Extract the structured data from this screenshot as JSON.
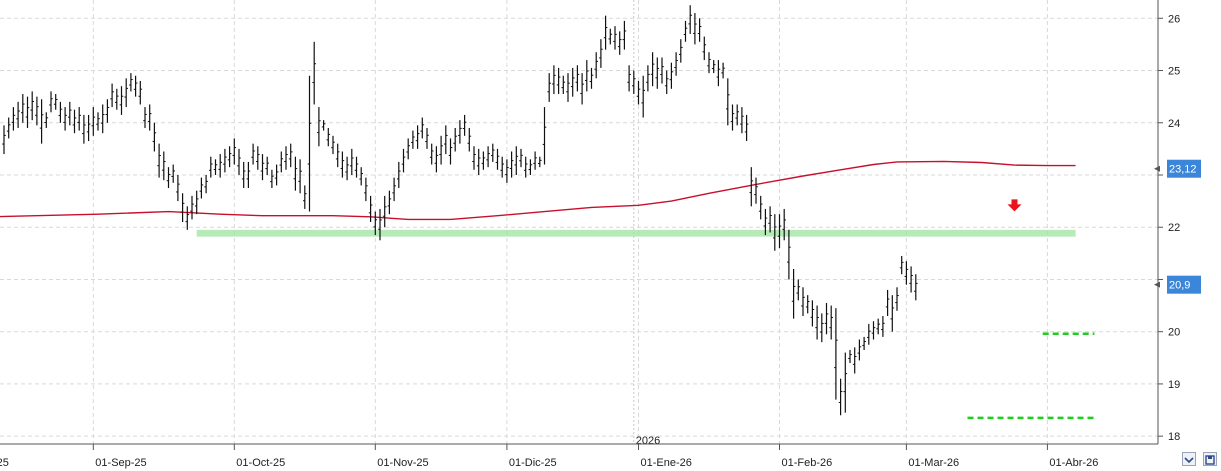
{
  "chart_data": {
    "type": "ohlc",
    "title": "",
    "xlabel": "",
    "ylabel": "",
    "ylim": [
      17.85,
      26.35
    ],
    "grid": true,
    "y_ticks": [
      18,
      19,
      20,
      21,
      22,
      23,
      24,
      25,
      26
    ],
    "y_tick_labels": [
      "18",
      "19",
      "20",
      "",
      "22",
      "",
      "24",
      "25",
      "26"
    ],
    "x_labels": [
      {
        "index": -2,
        "label": "25"
      },
      {
        "index": 19,
        "label": "01-Sep-25"
      },
      {
        "index": 49,
        "label": "01-Oct-25"
      },
      {
        "index": 79,
        "label": "01-Nov-25"
      },
      {
        "index": 107,
        "label": "01-Dic-25"
      },
      {
        "index": 135,
        "label": "01-Ene-26"
      },
      {
        "index": 165,
        "label": "01-Feb-26"
      },
      {
        "index": 192,
        "label": "01-Mar-26"
      },
      {
        "index": 222,
        "label": "01-Abr-26"
      }
    ],
    "year_marker": {
      "index": 134,
      "label": "2026"
    },
    "price_bars": [
      [
        23.4,
        23.95
      ],
      [
        23.7,
        24.1
      ],
      [
        23.85,
        24.3
      ],
      [
        23.9,
        24.4
      ],
      [
        24.0,
        24.55
      ],
      [
        23.9,
        24.5
      ],
      [
        24.05,
        24.6
      ],
      [
        23.95,
        24.5
      ],
      [
        23.6,
        24.45
      ],
      [
        23.9,
        24.2
      ],
      [
        24.2,
        24.6
      ],
      [
        24.25,
        24.55
      ],
      [
        24.0,
        24.4
      ],
      [
        23.85,
        24.3
      ],
      [
        23.95,
        24.4
      ],
      [
        23.8,
        24.25
      ],
      [
        23.85,
        24.3
      ],
      [
        23.6,
        24.15
      ],
      [
        23.65,
        24.15
      ],
      [
        23.75,
        24.3
      ],
      [
        23.85,
        24.2
      ],
      [
        23.8,
        24.35
      ],
      [
        24.0,
        24.45
      ],
      [
        24.3,
        24.75
      ],
      [
        24.25,
        24.65
      ],
      [
        24.15,
        24.7
      ],
      [
        24.3,
        24.85
      ],
      [
        24.6,
        24.95
      ],
      [
        24.5,
        24.9
      ],
      [
        24.35,
        24.8
      ],
      [
        23.9,
        24.3
      ],
      [
        23.85,
        24.35
      ],
      [
        23.45,
        24.0
      ],
      [
        22.95,
        23.6
      ],
      [
        22.9,
        23.45
      ],
      [
        22.75,
        23.15
      ],
      [
        22.85,
        23.2
      ],
      [
        22.5,
        23.0
      ],
      [
        22.1,
        22.65
      ],
      [
        21.95,
        22.4
      ],
      [
        22.15,
        22.6
      ],
      [
        22.25,
        22.7
      ],
      [
        22.55,
        22.95
      ],
      [
        22.65,
        23.0
      ],
      [
        22.95,
        23.35
      ],
      [
        23.0,
        23.3
      ],
      [
        22.95,
        23.4
      ],
      [
        23.05,
        23.5
      ],
      [
        23.15,
        23.55
      ],
      [
        23.2,
        23.7
      ],
      [
        23.0,
        23.5
      ],
      [
        22.75,
        23.25
      ],
      [
        22.75,
        23.25
      ],
      [
        23.2,
        23.6
      ],
      [
        23.1,
        23.55
      ],
      [
        22.9,
        23.4
      ],
      [
        23.0,
        23.35
      ],
      [
        22.75,
        23.1
      ],
      [
        22.8,
        23.2
      ],
      [
        23.05,
        23.45
      ],
      [
        23.1,
        23.55
      ],
      [
        23.15,
        23.6
      ],
      [
        22.7,
        23.35
      ],
      [
        22.65,
        23.3
      ],
      [
        22.35,
        22.8
      ],
      [
        22.3,
        24.9
      ],
      [
        24.35,
        25.55
      ],
      [
        23.55,
        24.3
      ],
      [
        23.85,
        24.05
      ],
      [
        23.55,
        23.9
      ],
      [
        23.4,
        23.75
      ],
      [
        23.15,
        23.6
      ],
      [
        22.95,
        23.45
      ],
      [
        22.9,
        23.35
      ],
      [
        23.0,
        23.5
      ],
      [
        22.95,
        23.35
      ],
      [
        22.8,
        23.15
      ],
      [
        22.5,
        22.95
      ],
      [
        22.1,
        22.6
      ],
      [
        21.85,
        22.3
      ],
      [
        21.75,
        22.35
      ],
      [
        22.0,
        22.6
      ],
      [
        22.25,
        22.7
      ],
      [
        22.5,
        22.95
      ],
      [
        22.75,
        23.25
      ],
      [
        23.05,
        23.5
      ],
      [
        23.3,
        23.7
      ],
      [
        23.5,
        23.85
      ],
      [
        23.5,
        23.95
      ],
      [
        23.7,
        24.1
      ],
      [
        23.5,
        23.9
      ],
      [
        23.2,
        23.6
      ],
      [
        23.05,
        23.55
      ],
      [
        23.2,
        23.75
      ],
      [
        23.4,
        23.95
      ],
      [
        23.2,
        23.7
      ],
      [
        23.45,
        23.9
      ],
      [
        23.6,
        24.05
      ],
      [
        23.75,
        24.15
      ],
      [
        23.45,
        23.9
      ],
      [
        23.1,
        23.55
      ],
      [
        23.0,
        23.5
      ],
      [
        23.1,
        23.45
      ],
      [
        23.15,
        23.55
      ],
      [
        23.25,
        23.6
      ],
      [
        23.1,
        23.5
      ],
      [
        22.95,
        23.35
      ],
      [
        22.85,
        23.3
      ],
      [
        22.95,
        23.45
      ],
      [
        23.0,
        23.55
      ],
      [
        23.15,
        23.5
      ],
      [
        22.95,
        23.35
      ],
      [
        23.0,
        23.3
      ],
      [
        23.1,
        23.45
      ],
      [
        23.15,
        23.35
      ],
      [
        23.2,
        24.3
      ],
      [
        24.4,
        24.95
      ],
      [
        24.55,
        25.1
      ],
      [
        24.55,
        25.05
      ],
      [
        24.55,
        24.9
      ],
      [
        24.4,
        24.95
      ],
      [
        24.5,
        25.05
      ],
      [
        24.6,
        25.1
      ],
      [
        24.35,
        24.95
      ],
      [
        24.6,
        25.2
      ],
      [
        24.65,
        25.05
      ],
      [
        24.85,
        25.35
      ],
      [
        25.05,
        25.6
      ],
      [
        25.4,
        26.05
      ],
      [
        25.5,
        25.8
      ],
      [
        25.4,
        25.85
      ],
      [
        25.3,
        25.75
      ],
      [
        25.4,
        25.95
      ],
      [
        24.6,
        25.1
      ],
      [
        24.55,
        25.0
      ],
      [
        24.35,
        24.8
      ],
      [
        24.1,
        24.9
      ],
      [
        24.6,
        25.1
      ],
      [
        24.7,
        25.35
      ],
      [
        24.65,
        25.25
      ],
      [
        24.75,
        25.25
      ],
      [
        24.55,
        25.0
      ],
      [
        24.65,
        25.15
      ],
      [
        24.9,
        25.35
      ],
      [
        25.15,
        25.6
      ],
      [
        25.55,
        25.95
      ],
      [
        25.7,
        26.25
      ],
      [
        25.5,
        26.1
      ],
      [
        25.55,
        26.0
      ],
      [
        25.2,
        25.65
      ],
      [
        24.95,
        25.35
      ],
      [
        24.95,
        25.2
      ],
      [
        24.7,
        25.2
      ],
      [
        24.85,
        25.15
      ],
      [
        23.95,
        24.85
      ],
      [
        23.85,
        24.35
      ],
      [
        23.95,
        24.35
      ],
      [
        23.8,
        24.3
      ],
      [
        23.65,
        24.15
      ],
      [
        22.4,
        23.15
      ],
      [
        22.45,
        22.95
      ],
      [
        22.15,
        22.6
      ],
      [
        21.85,
        22.35
      ],
      [
        21.9,
        22.4
      ],
      [
        21.55,
        22.25
      ],
      [
        21.6,
        22.25
      ],
      [
        21.75,
        22.35
      ],
      [
        21.0,
        21.95
      ],
      [
        20.25,
        21.2
      ],
      [
        20.6,
        21.0
      ],
      [
        20.3,
        20.85
      ],
      [
        20.35,
        20.7
      ],
      [
        20.1,
        20.6
      ],
      [
        19.85,
        20.5
      ],
      [
        19.8,
        20.35
      ],
      [
        19.95,
        20.55
      ],
      [
        19.85,
        20.5
      ],
      [
        18.7,
        20.45
      ],
      [
        18.4,
        19.1
      ],
      [
        18.45,
        19.6
      ],
      [
        19.4,
        19.65
      ],
      [
        19.2,
        19.7
      ],
      [
        19.45,
        19.85
      ],
      [
        19.65,
        19.9
      ],
      [
        19.75,
        20.15
      ],
      [
        19.85,
        20.2
      ],
      [
        19.95,
        20.25
      ],
      [
        19.9,
        20.3
      ],
      [
        20.3,
        20.8
      ],
      [
        20.0,
        20.7
      ],
      [
        20.4,
        20.85
      ],
      [
        21.1,
        21.45
      ],
      [
        20.9,
        21.35
      ],
      [
        20.75,
        21.25
      ],
      [
        20.6,
        21.1
      ]
    ],
    "series": [
      {
        "name": "",
        "type": "line",
        "color": "#c8102e",
        "points": [
          [
            -3,
            22.2
          ],
          [
            20,
            22.25
          ],
          [
            35,
            22.3
          ],
          [
            46,
            22.25
          ],
          [
            55,
            22.22
          ],
          [
            70,
            22.22
          ],
          [
            78,
            22.2
          ],
          [
            86,
            22.15
          ],
          [
            95,
            22.15
          ],
          [
            105,
            22.22
          ],
          [
            115,
            22.3
          ],
          [
            125,
            22.38
          ],
          [
            135,
            22.42
          ],
          [
            142,
            22.5
          ],
          [
            150,
            22.65
          ],
          [
            160,
            22.82
          ],
          [
            170,
            22.98
          ],
          [
            178,
            23.1
          ],
          [
            185,
            23.2
          ],
          [
            190,
            23.25
          ],
          [
            200,
            23.26
          ],
          [
            208,
            23.24
          ],
          [
            215,
            23.19
          ],
          [
            222,
            23.18
          ],
          [
            228,
            23.18
          ]
        ]
      }
    ],
    "support_zone": {
      "from": 41,
      "to": 228,
      "low": 21.82,
      "high": 21.95,
      "color": "#9de39d"
    },
    "dashed_levels": [
      {
        "from": 221,
        "to": 232,
        "y": 19.96,
        "color": "#22cc22"
      },
      {
        "from": 205,
        "to": 232,
        "y": 18.35,
        "color": "#22cc22"
      }
    ],
    "marker": {
      "type": "down-arrow",
      "index": 215,
      "y": 22.4,
      "color": "#e8141e"
    },
    "price_tags": [
      {
        "label": "23,12",
        "value": 23.12,
        "color": "#3b86d8"
      },
      {
        "label": "20,9",
        "value": 20.9,
        "color": "#3b86d8"
      }
    ]
  },
  "ui": {
    "corner_icons": [
      "collapse-icon",
      "save-icon"
    ]
  }
}
